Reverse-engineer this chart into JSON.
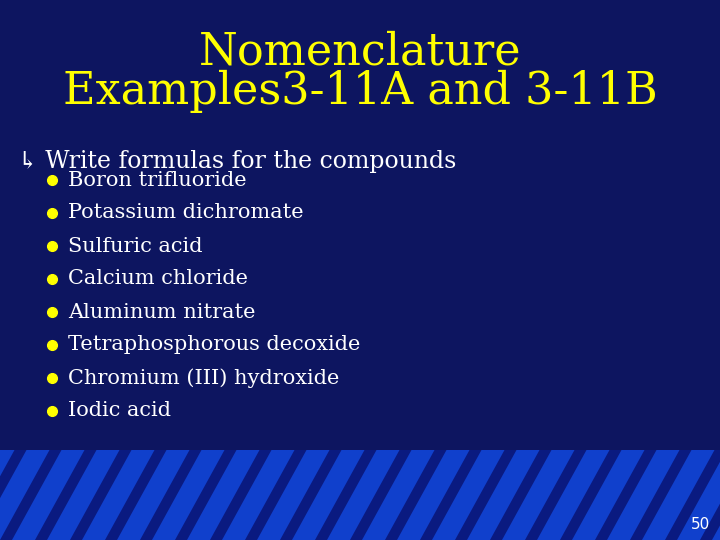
{
  "title_line1": "Nomenclature",
  "title_line2": "Examples3-11A and 3-11B",
  "title_color": "#FFFF00",
  "bg_color": "#0D1560",
  "subtitle_arrow": "↳",
  "subtitle_text": " Write formulas for the compounds",
  "subtitle_color": "#FFFFFF",
  "bullet_color": "#FFFF00",
  "bullet_text_color": "#FFFFFF",
  "bullets": [
    "Boron trifluoride",
    "Potassium dichromate",
    "Sulfuric acid",
    "Calcium chloride",
    "Aluminum nitrate",
    "Tetraphosphorous decoxide",
    "Chromium (III) hydroxide",
    "Iodic acid"
  ],
  "page_number": "50",
  "page_number_color": "#FFFFFF",
  "stripe_bg_color": "#1040CC",
  "stripe_line_color": "#0A1A80"
}
